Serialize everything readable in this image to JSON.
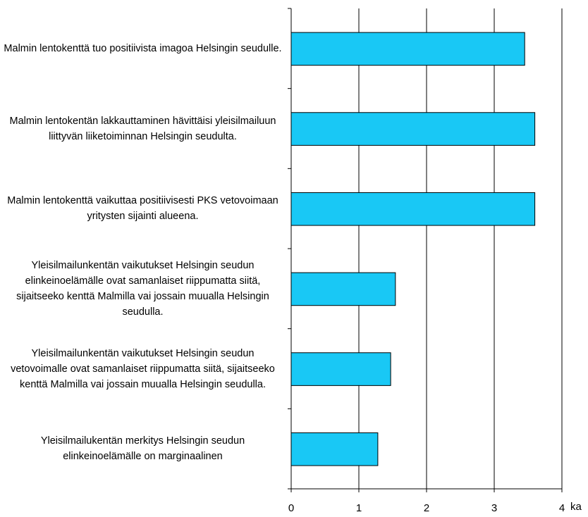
{
  "chart_data": {
    "type": "hbar",
    "categories": [
      "Malmin lentokenttä tuo positiivista imagoa Helsingin seudulle.",
      "Malmin lentokentän lakkauttaminen hävittäisi yleisilmailuun liittyvän liiketoiminnan Helsingin seudulta.",
      "Malmin lentokenttä vaikuttaa positiivisesti PKS vetovoimaan yritysten sijainti alueena.",
      "Yleisilmailunkentän vaikutukset Helsingin seudun elinkeinoelämälle ovat samanlaiset riippumatta siitä, sijaitseeko kenttä Malmilla vai jossain muualla Helsingin seudulla.",
      "Yleisilmailunkentän vaikutukset Helsingin seudun vetovoimalle ovat samanlaiset riippumatta siitä, sijaitseeko kenttä Malmilla vai jossain muualla Helsingin seudulla.",
      "Yleisilmailukentän merkitys Helsingin seudun elinkeinoelämälle on marginaalinen"
    ],
    "values": [
      3.45,
      3.6,
      3.6,
      1.54,
      1.47,
      1.28
    ],
    "color": "#19c8f5",
    "x_label": "ka",
    "xlim": [
      0,
      4
    ],
    "xticks": [
      0,
      1,
      2,
      3,
      4
    ],
    "grid": true
  }
}
